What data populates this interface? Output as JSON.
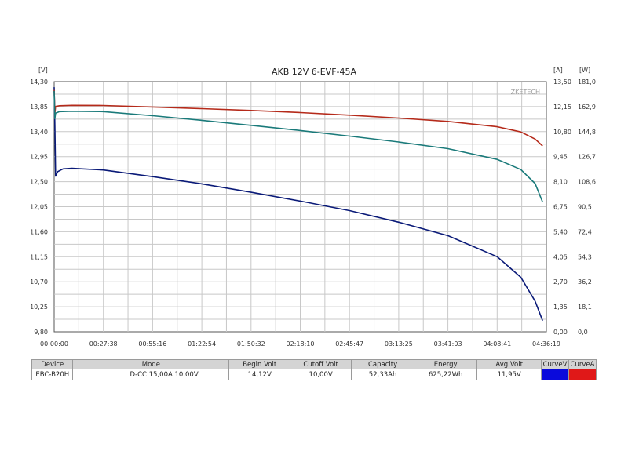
{
  "chart_data": {
    "type": "line",
    "title": "AKB 12V 6-EVF-45A",
    "watermark": "ZKETECH",
    "units": {
      "left": "[V]",
      "right_a": "[A]",
      "right_w": "[W]"
    },
    "y_left": {
      "min": 9.8,
      "max": 14.3,
      "ticks": [
        "14,30",
        "13,85",
        "13,40",
        "12,95",
        "12,50",
        "12,05",
        "11,60",
        "11,15",
        "10,70",
        "10,25",
        "9,80"
      ]
    },
    "y_right_a": {
      "min": 0,
      "max": 13.5,
      "ticks": [
        "13,50",
        "12,15",
        "10,80",
        "9,45",
        "8,10",
        "6,75",
        "5,40",
        "4,05",
        "2,70",
        "1,35",
        "0,00"
      ]
    },
    "y_right_w": {
      "min": 0,
      "max": 181,
      "ticks": [
        "181,0",
        "162,9",
        "144,8",
        "126,7",
        "108,6",
        "90,5",
        "72,4",
        "54,3",
        "36,2",
        "18,1",
        "0,0"
      ]
    },
    "x_ticks": [
      "00:00:00",
      "00:27:38",
      "00:55:16",
      "01:22:54",
      "01:50:32",
      "02:18:10",
      "02:45:47",
      "03:13:25",
      "03:41:03",
      "04:08:41",
      "04:36:19"
    ],
    "x_range_minutes": [
      0,
      276.3
    ],
    "series": [
      {
        "color": "#0a1a78",
        "axis": "V",
        "points": [
          [
            0,
            14.2
          ],
          [
            0.4,
            13.5
          ],
          [
            0.8,
            12.6
          ],
          [
            2,
            12.68
          ],
          [
            5,
            12.73
          ],
          [
            10,
            12.74
          ],
          [
            27.6,
            12.71
          ],
          [
            55.3,
            12.59
          ],
          [
            82.9,
            12.46
          ],
          [
            110.5,
            12.31
          ],
          [
            138.2,
            12.15
          ],
          [
            165.8,
            11.98
          ],
          [
            193.4,
            11.77
          ],
          [
            221,
            11.53
          ],
          [
            248.7,
            11.15
          ],
          [
            262,
            10.78
          ],
          [
            270,
            10.35
          ],
          [
            274.2,
            10.0
          ]
        ]
      },
      {
        "color": "#b52a1a",
        "axis": "W",
        "points": [
          [
            0,
            175
          ],
          [
            0.4,
            158
          ],
          [
            0.8,
            163
          ],
          [
            3,
            163.5
          ],
          [
            10,
            163.8
          ],
          [
            27.6,
            163.7
          ],
          [
            55.3,
            162.6
          ],
          [
            82.9,
            161.4
          ],
          [
            110.5,
            160.1
          ],
          [
            138.2,
            158.6
          ],
          [
            165.8,
            156.7
          ],
          [
            193.4,
            154.6
          ],
          [
            221,
            152.2
          ],
          [
            248.7,
            148.3
          ],
          [
            262,
            144.6
          ],
          [
            270,
            139.4
          ],
          [
            274.2,
            134.5
          ]
        ]
      },
      {
        "color": "#1a7a7a",
        "axis": "A",
        "points": [
          [
            0,
            13.0
          ],
          [
            0.4,
            11.5
          ],
          [
            0.8,
            11.8
          ],
          [
            3,
            11.88
          ],
          [
            10,
            11.9
          ],
          [
            27.6,
            11.88
          ],
          [
            55.3,
            11.66
          ],
          [
            82.9,
            11.41
          ],
          [
            110.5,
            11.14
          ],
          [
            138.2,
            10.86
          ],
          [
            165.8,
            10.56
          ],
          [
            193.4,
            10.24
          ],
          [
            221,
            9.88
          ],
          [
            248.7,
            9.3
          ],
          [
            262,
            8.75
          ],
          [
            270,
            8.0
          ],
          [
            274.2,
            7.0
          ]
        ]
      }
    ]
  },
  "info_table": {
    "headers": [
      "Device",
      "Mode",
      "Begin Volt",
      "Cutoff Volt",
      "Capacity",
      "Energy",
      "Avg Volt",
      "CurveV",
      "CurveA"
    ],
    "row": [
      "EBC-B20H",
      "D-CC 15,00A  10,00V",
      "14,12V",
      "10,00V",
      "52,33Ah",
      "625,22Wh",
      "11,95V"
    ],
    "curve_colors": {
      "curve_v": "#0a0adc",
      "curve_a": "#e01818"
    }
  }
}
